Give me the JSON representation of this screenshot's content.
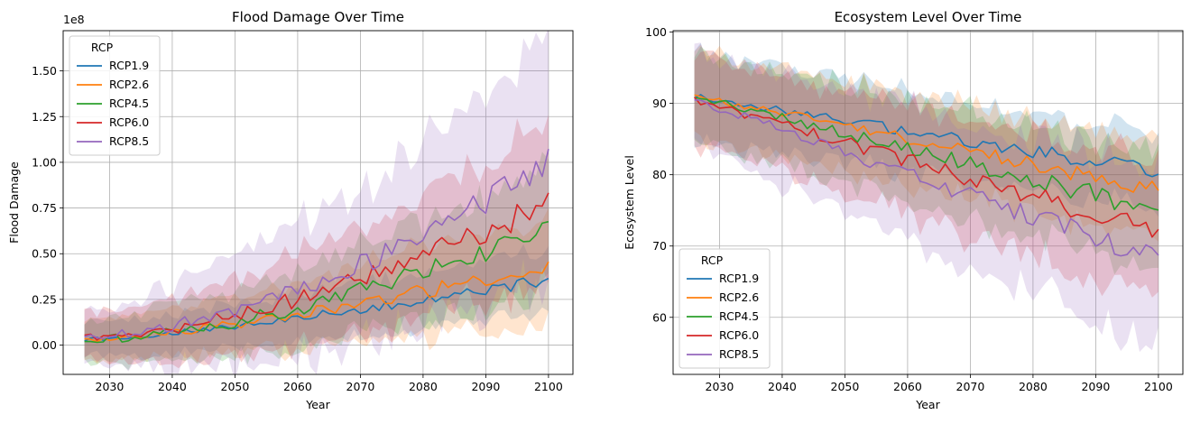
{
  "colors": {
    "RCP1.9": "#1f77b4",
    "RCP2.6": "#ff7f0e",
    "RCP4.5": "#2ca02c",
    "RCP6.0": "#d62728",
    "RCP8.5": "#9467bd"
  },
  "chart_data": [
    {
      "type": "line",
      "title": "Flood Damage Over Time",
      "xlabel": "Year",
      "ylabel": "Flood Damage",
      "offset_text": "1e8",
      "xlim": [
        2022.6,
        2103.9
      ],
      "ylim": [
        -0.16,
        1.72
      ],
      "xticks": [
        2030,
        2040,
        2050,
        2060,
        2070,
        2080,
        2090,
        2100
      ],
      "yticks": [
        0.0,
        0.25,
        0.5,
        0.75,
        1.0,
        1.25,
        1.5
      ],
      "ytick_labels": [
        "0.00",
        "0.25",
        "0.50",
        "0.75",
        "1.00",
        "1.25",
        "1.50"
      ],
      "grid": true,
      "legend": {
        "title": "RCP",
        "placement": "upper left"
      },
      "x_start": 2026,
      "x_end": 2100,
      "series": [
        {
          "name": "RCP1.9",
          "start": 0.03,
          "end": 0.36,
          "curve": 1.3,
          "noise": 0.025,
          "band_start": 0.09,
          "band_end": 0.17
        },
        {
          "name": "RCP2.6",
          "start": 0.03,
          "end": 0.44,
          "curve": 1.4,
          "noise": 0.035,
          "band_start": 0.1,
          "band_end": 0.28
        },
        {
          "name": "RCP4.5",
          "start": 0.03,
          "end": 0.64,
          "curve": 1.6,
          "noise": 0.05,
          "band_start": 0.11,
          "band_end": 0.32
        },
        {
          "name": "RCP6.0",
          "start": 0.04,
          "end": 0.78,
          "curve": 1.6,
          "noise": 0.055,
          "band_start": 0.12,
          "band_end": 0.4
        },
        {
          "name": "RCP8.5",
          "start": 0.05,
          "end": 1.0,
          "curve": 1.7,
          "noise": 0.06,
          "band_start": 0.13,
          "band_end": 0.62
        }
      ]
    },
    {
      "type": "line",
      "title": "Ecosystem Level Over Time",
      "xlabel": "Year",
      "ylabel": "Ecosystem Level",
      "offset_text": "",
      "xlim": [
        2022.6,
        2103.9
      ],
      "ylim": [
        52.0,
        100.2
      ],
      "xticks": [
        2030,
        2040,
        2050,
        2060,
        2070,
        2080,
        2090,
        2100
      ],
      "yticks": [
        60,
        70,
        80,
        90,
        100
      ],
      "ytick_labels": [
        "60",
        "70",
        "80",
        "90",
        "100"
      ],
      "grid": true,
      "legend": {
        "title": "RCP",
        "placement": "lower left"
      },
      "x_start": 2026,
      "x_end": 2100,
      "series": [
        {
          "name": "RCP1.9",
          "start": 91.0,
          "end": 80.5,
          "curve": 1.0,
          "noise": 0.9,
          "band_start": 6.0,
          "band_end": 5.0
        },
        {
          "name": "RCP2.6",
          "start": 91.0,
          "end": 78.0,
          "curve": 1.0,
          "noise": 1.0,
          "band_start": 6.0,
          "band_end": 6.5
        },
        {
          "name": "RCP4.5",
          "start": 91.0,
          "end": 75.0,
          "curve": 1.0,
          "noise": 1.1,
          "band_start": 6.0,
          "band_end": 8.0
        },
        {
          "name": "RCP6.0",
          "start": 90.5,
          "end": 72.0,
          "curve": 1.0,
          "noise": 1.2,
          "band_start": 6.0,
          "band_end": 9.5
        },
        {
          "name": "RCP8.5",
          "start": 90.5,
          "end": 68.0,
          "curve": 1.0,
          "noise": 1.3,
          "band_start": 6.5,
          "band_end": 12.0
        }
      ]
    }
  ]
}
